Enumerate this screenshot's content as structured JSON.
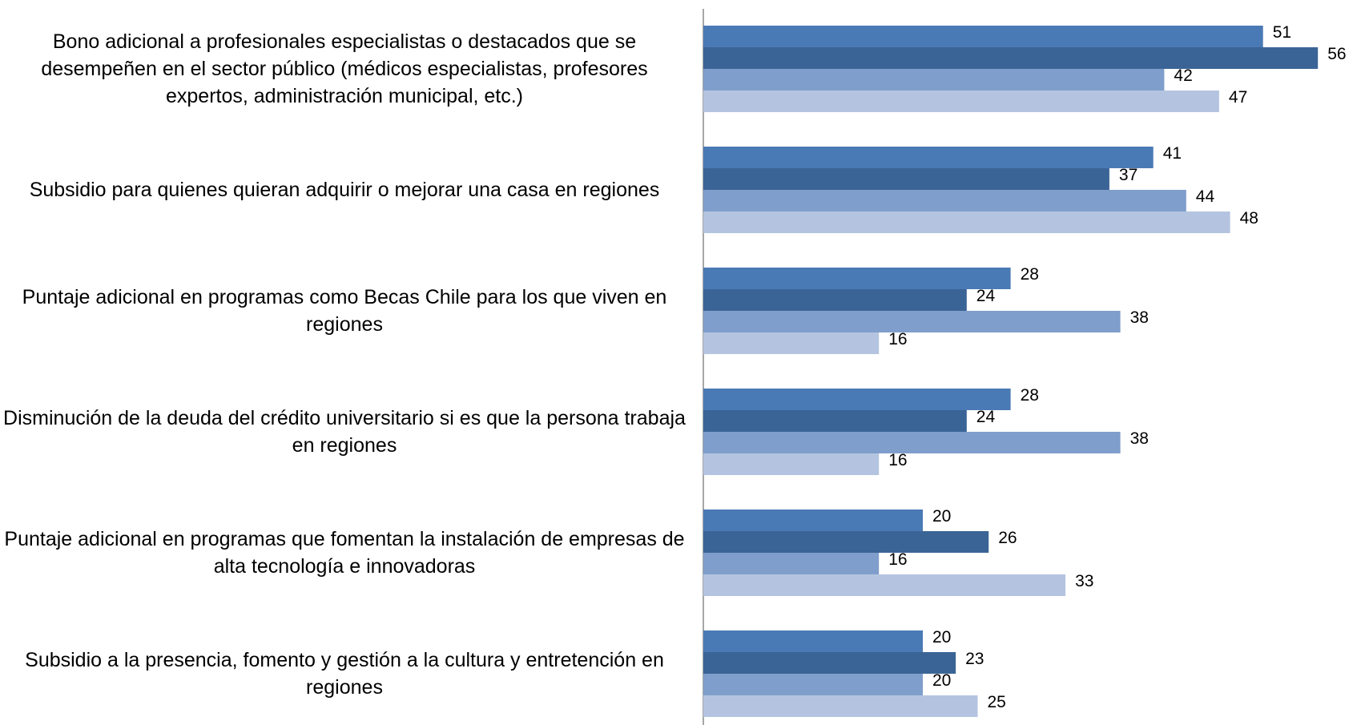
{
  "chart_data": {
    "type": "hbar",
    "categories": [
      "Bono adicional a profesionales especialistas o destacados que se desempeñen en el sector público (médicos especialistas, profesores expertos, administración municipal, etc.)",
      "Subsidio para quienes quieran adquirir o mejorar una casa en regiones",
      "Puntaje adicional en programas como Becas Chile para los que viven en regiones",
      "Disminución de la deuda del crédito universitario si es que la persona trabaja en regiones",
      "Puntaje adicional en programas que fomentan la instalación de empresas de alta tecnología e innovadoras",
      "Subsidio a la presencia, fomento y gestión a la cultura y entretención en regiones"
    ],
    "series": [
      {
        "color": "#4a7ab5",
        "values": [
          51,
          41,
          28,
          28,
          20,
          20
        ]
      },
      {
        "color": "#3b6496",
        "values": [
          56,
          37,
          24,
          24,
          26,
          23
        ]
      },
      {
        "color": "#7f9ecb",
        "values": [
          42,
          44,
          38,
          38,
          16,
          20
        ]
      },
      {
        "color": "#b4c4e0",
        "values": [
          47,
          48,
          16,
          16,
          33,
          25
        ]
      }
    ],
    "xlim": [
      0,
      60
    ]
  }
}
